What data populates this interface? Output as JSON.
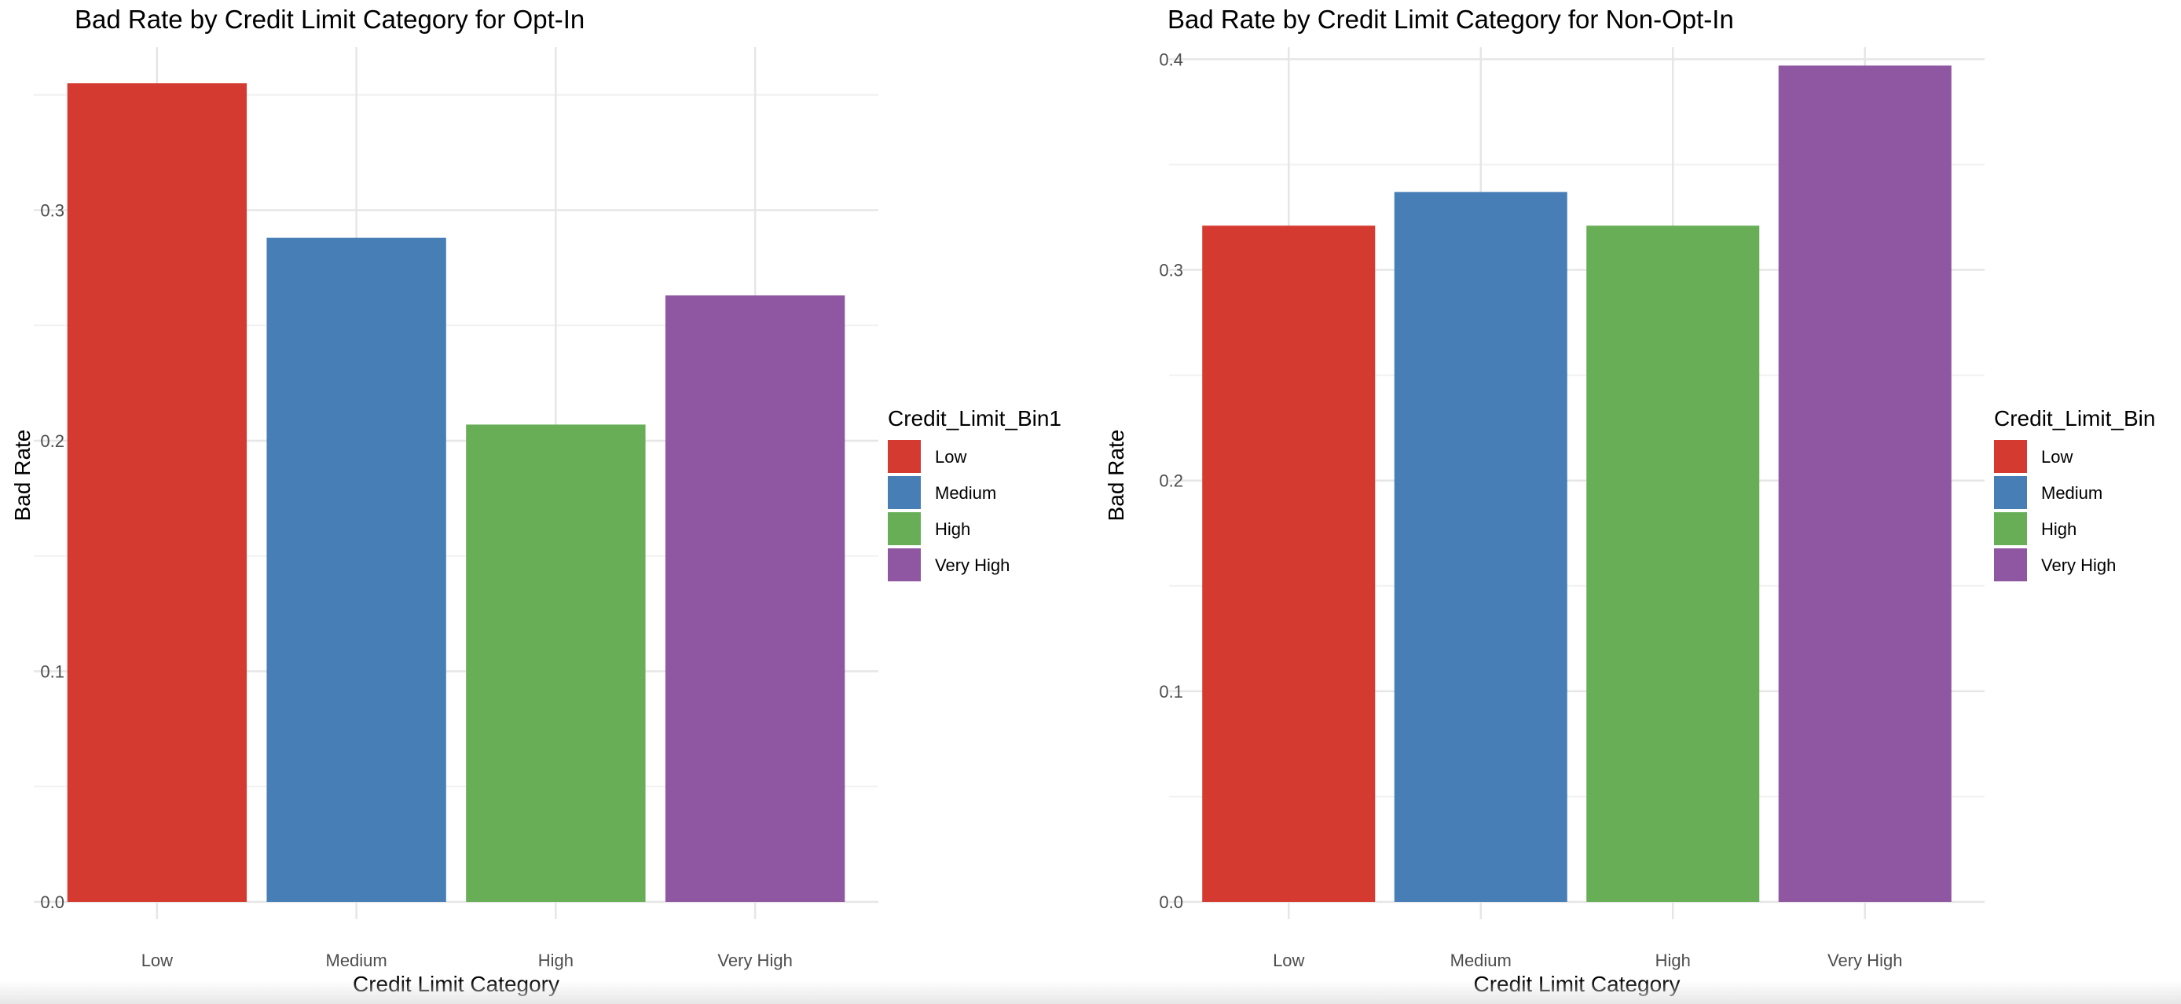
{
  "colors": {
    "Low": "#D43A2F",
    "Medium": "#477EB5",
    "High": "#67AE57",
    "Very High": "#8F56A1"
  },
  "chart_data": [
    {
      "type": "bar",
      "title": "Bad Rate by Credit Limit Category for Opt-In",
      "xlabel": "Credit Limit Category",
      "ylabel": "Bad Rate",
      "categories": [
        "Low",
        "Medium",
        "High",
        "Very High"
      ],
      "values": [
        0.355,
        0.288,
        0.207,
        0.263
      ],
      "ylim": [
        0,
        0.37
      ],
      "yticks": [
        0.0,
        0.1,
        0.2,
        0.3
      ],
      "ytick_labels": [
        "0.0",
        "0.1",
        "0.2",
        "0.3"
      ],
      "grid": true,
      "legend": {
        "title": "Credit_Limit_Bin1",
        "position": "right",
        "entries": [
          "Low",
          "Medium",
          "High",
          "Very High"
        ]
      }
    },
    {
      "type": "bar",
      "title": "Bad Rate by Credit Limit Category for Non-Opt-In",
      "xlabel": "Credit Limit Category",
      "ylabel": "Bad Rate",
      "categories": [
        "Low",
        "Medium",
        "High",
        "Very High"
      ],
      "values": [
        0.321,
        0.337,
        0.321,
        0.397
      ],
      "ylim": [
        0,
        0.405
      ],
      "yticks": [
        0.0,
        0.1,
        0.2,
        0.3,
        0.4
      ],
      "ytick_labels": [
        "0.0",
        "0.1",
        "0.2",
        "0.3",
        "0.4"
      ],
      "grid": true,
      "legend": {
        "title": "Credit_Limit_Bin",
        "position": "right",
        "entries": [
          "Low",
          "Medium",
          "High",
          "Very High"
        ]
      }
    }
  ]
}
